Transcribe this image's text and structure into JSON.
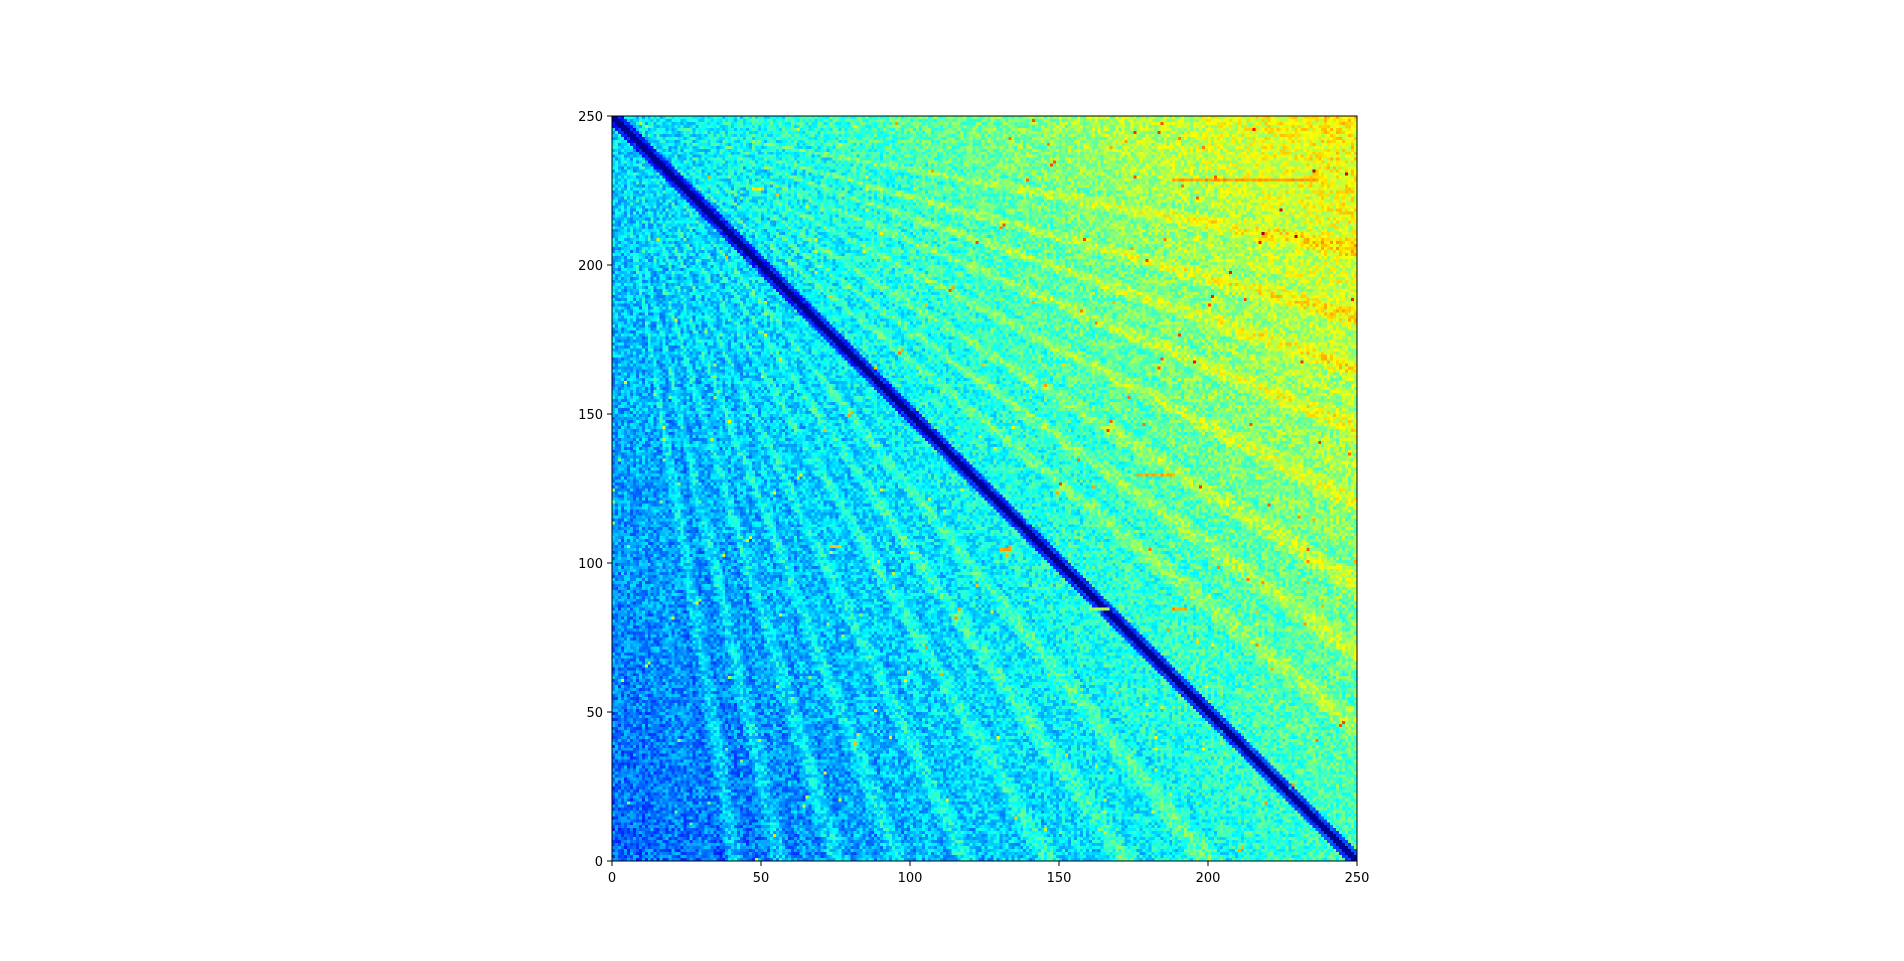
{
  "chart_data": {
    "type": "heatmap",
    "title": "",
    "xlabel": "",
    "ylabel": "",
    "xlim": [
      0,
      250
    ],
    "ylim": [
      0,
      250
    ],
    "grid_size": 250,
    "colormap": "jet",
    "grid": false,
    "x_ticks": [
      0,
      50,
      100,
      150,
      200,
      250
    ],
    "y_ticks": [
      0,
      50,
      100,
      150,
      200,
      250
    ],
    "x_tick_labels": [
      "0",
      "50",
      "100",
      "150",
      "200",
      "250"
    ],
    "y_tick_labels": [
      "0",
      "50",
      "100",
      "150",
      "200",
      "250"
    ],
    "description_of_values": "Symmetric-like pairwise matrix; near-zero (dark) along the anti-diagonal from (0,250) to (250,0); radial ray patterns emanating from top-left corner; higher (cyan/yellow) values toward the upper-right region.",
    "highlighted_segments": [
      {
        "y": 228,
        "x_start": 188,
        "x_end": 236,
        "level": 0.72
      },
      {
        "y": 129,
        "x_start": 176,
        "x_end": 188,
        "level": 0.7
      },
      {
        "y": 84,
        "x_start": 188,
        "x_end": 192,
        "level": 0.72
      },
      {
        "y": 84,
        "x_start": 160,
        "x_end": 166,
        "level": 0.55
      },
      {
        "y": 104,
        "x_start": 130,
        "x_end": 133,
        "level": 0.7
      },
      {
        "y": 105,
        "x_start": 73,
        "x_end": 76,
        "level": 0.68
      },
      {
        "y": 225,
        "x_start": 47,
        "x_end": 50,
        "level": 0.66
      }
    ]
  }
}
